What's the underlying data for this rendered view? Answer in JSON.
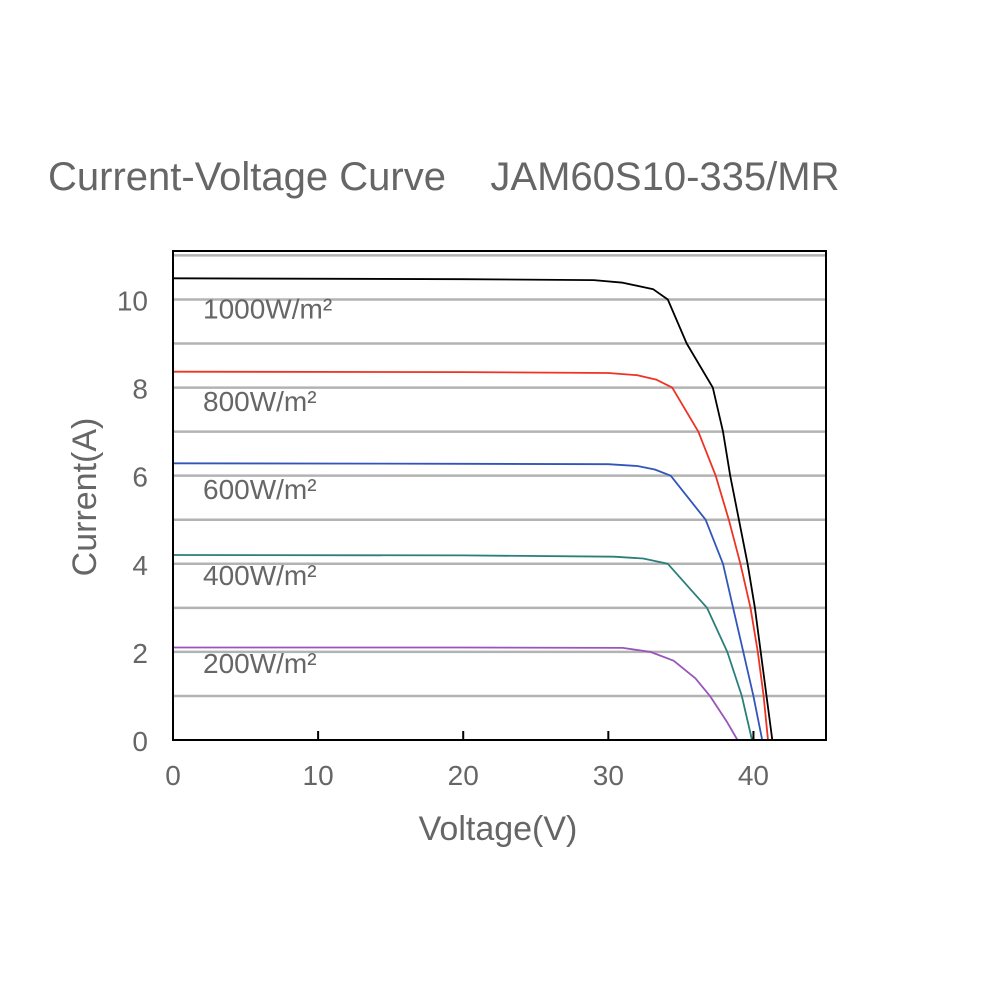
{
  "chart_data": {
    "type": "line",
    "title": "Current-Voltage Curve    JAM60S10-335/MR",
    "xlabel": "Voltage(V)",
    "ylabel": "Current(A)",
    "xlim": [
      0,
      45
    ],
    "ylim": [
      0,
      11.1
    ],
    "xticks": [
      "0",
      "10",
      "20",
      "30",
      "40"
    ],
    "xtick_values": [
      0,
      10,
      20,
      30,
      40
    ],
    "yticks": [
      "0",
      "2",
      "4",
      "6",
      "8",
      "10"
    ],
    "ytick_values": [
      0,
      2,
      4,
      6,
      8,
      10
    ],
    "grid": "horizontal every 1 A",
    "legend": "inline labels left",
    "series": [
      {
        "name": "1000W/m²",
        "color": "#000000",
        "label_current": 9.8,
        "points": [
          [
            0,
            10.48
          ],
          [
            20,
            10.46
          ],
          [
            29,
            10.44
          ],
          [
            31,
            10.38
          ],
          [
            33.1,
            10.23
          ],
          [
            34.1,
            10
          ],
          [
            35.4,
            9
          ],
          [
            37.2,
            8
          ],
          [
            37.9,
            7
          ],
          [
            38.4,
            6
          ],
          [
            39.0,
            5
          ],
          [
            39.6,
            4
          ],
          [
            40.1,
            3
          ],
          [
            40.5,
            2
          ],
          [
            40.9,
            1
          ],
          [
            41.3,
            0
          ]
        ]
      },
      {
        "name": "800W/m²",
        "color": "#ee3322",
        "label_current": 7.7,
        "points": [
          [
            0,
            8.36
          ],
          [
            20,
            8.35
          ],
          [
            30,
            8.33
          ],
          [
            32,
            8.28
          ],
          [
            33.3,
            8.18
          ],
          [
            34.4,
            8
          ],
          [
            36.2,
            7
          ],
          [
            37.4,
            6
          ],
          [
            38.3,
            5
          ],
          [
            39.1,
            4
          ],
          [
            39.8,
            3
          ],
          [
            40.3,
            2
          ],
          [
            40.7,
            1
          ],
          [
            41.0,
            0
          ]
        ]
      },
      {
        "name": "600W/m²",
        "color": "#3355bb",
        "label_current": 5.7,
        "points": [
          [
            0,
            6.28
          ],
          [
            20,
            6.27
          ],
          [
            30,
            6.26
          ],
          [
            32,
            6.22
          ],
          [
            33.2,
            6.14
          ],
          [
            34.3,
            6
          ],
          [
            36.7,
            5
          ],
          [
            37.9,
            4
          ],
          [
            38.6,
            3
          ],
          [
            39.3,
            2
          ],
          [
            40.0,
            1
          ],
          [
            40.6,
            0
          ]
        ]
      },
      {
        "name": "400W/m²",
        "color": "#2a7f7a",
        "label_current": 3.75,
        "points": [
          [
            0,
            4.2
          ],
          [
            20,
            4.19
          ],
          [
            30.4,
            4.16
          ],
          [
            32.4,
            4.12
          ],
          [
            34.1,
            4
          ],
          [
            36.8,
            3
          ],
          [
            38.2,
            2
          ],
          [
            39.2,
            1
          ],
          [
            39.9,
            0
          ]
        ]
      },
      {
        "name": "200W/m²",
        "color": "#9955bb",
        "label_current": 1.75,
        "points": [
          [
            0,
            2.1
          ],
          [
            20,
            2.1
          ],
          [
            31,
            2.09
          ],
          [
            32.9,
            2.0
          ],
          [
            34.5,
            1.8
          ],
          [
            36,
            1.4
          ],
          [
            37.0,
            1
          ],
          [
            38.2,
            0.4
          ],
          [
            38.9,
            0
          ]
        ]
      }
    ]
  }
}
